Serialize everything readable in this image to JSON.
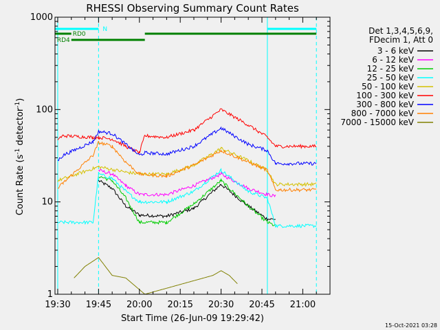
{
  "chart_data": {
    "type": "line",
    "title": "RHESSI Observing Summary Count Rates",
    "xlabel": "Start Time (26-Jun-09 19:29:42)",
    "ylabel": "Count Rate (s-1 detector-1)",
    "ylabel_parts": {
      "a": "Count Rate (s",
      "b": "-1",
      "c": " detector",
      "d": "-1",
      "e": ")"
    },
    "y_scale": "log",
    "ylim": [
      1,
      1000
    ],
    "xlim": [
      "19:29",
      "21:10"
    ],
    "x_ticks": [
      "19:30",
      "19:45",
      "20:00",
      "20:15",
      "20:30",
      "20:45",
      "21:00"
    ],
    "y_ticks": [
      "1",
      "10",
      "100",
      "1000"
    ],
    "legend_header": [
      "Det 1,3,4,5,6,9,",
      "FDecim 1, Att 0"
    ],
    "legend_position": "top-right, outside plot",
    "series": [
      {
        "name": "3 - 6 keV",
        "color": "#000000",
        "points": [
          [
            "19:45",
            17
          ],
          [
            "19:50",
            14
          ],
          [
            "19:55",
            9
          ],
          [
            "20:00",
            7.2
          ],
          [
            "20:10",
            7
          ],
          [
            "20:20",
            8.5
          ],
          [
            "20:30",
            15.5
          ],
          [
            "20:40",
            9
          ],
          [
            "20:47",
            6.5
          ],
          [
            "20:50",
            6.5
          ]
        ]
      },
      {
        "name": "6 - 12 keV",
        "color": "#ff00ff",
        "points": [
          [
            "19:45",
            22
          ],
          [
            "19:50",
            20
          ],
          [
            "19:55",
            15
          ],
          [
            "20:00",
            12
          ],
          [
            "20:10",
            12
          ],
          [
            "20:20",
            15
          ],
          [
            "20:30",
            20
          ],
          [
            "20:40",
            14
          ],
          [
            "20:47",
            12
          ],
          [
            "20:50",
            11.5
          ]
        ]
      },
      {
        "name": "12 - 25 keV",
        "color": "#00cc00",
        "points": [
          [
            "19:45",
            19
          ],
          [
            "19:50",
            17
          ],
          [
            "19:55",
            11
          ],
          [
            "20:00",
            6
          ],
          [
            "20:10",
            6
          ],
          [
            "20:20",
            9.5
          ],
          [
            "20:30",
            17
          ],
          [
            "20:40",
            9
          ],
          [
            "20:47",
            6
          ],
          [
            "20:50",
            5.5
          ]
        ]
      },
      {
        "name": "25 - 50 keV",
        "color": "#00ffff",
        "points": [
          [
            "19:30",
            6
          ],
          [
            "19:43",
            6
          ],
          [
            "19:45",
            20
          ],
          [
            "19:50",
            18
          ],
          [
            "19:55",
            13
          ],
          [
            "20:00",
            10
          ],
          [
            "20:10",
            10
          ],
          [
            "20:20",
            13
          ],
          [
            "20:30",
            22
          ],
          [
            "20:40",
            13
          ],
          [
            "20:47",
            11
          ],
          [
            "20:50",
            5.5
          ],
          [
            "21:05",
            5.5
          ]
        ]
      },
      {
        "name": "50 - 100 keV",
        "color": "#d4c000",
        "points": [
          [
            "19:30",
            17
          ],
          [
            "19:45",
            24
          ],
          [
            "19:55",
            21
          ],
          [
            "20:00",
            20
          ],
          [
            "20:10",
            20
          ],
          [
            "20:20",
            25
          ],
          [
            "20:30",
            38
          ],
          [
            "20:40",
            28
          ],
          [
            "20:47",
            22
          ],
          [
            "20:50",
            15.5
          ],
          [
            "21:05",
            15.5
          ]
        ]
      },
      {
        "name": "100 - 300 keV",
        "color": "#ff0000",
        "points": [
          [
            "19:30",
            48
          ],
          [
            "19:32",
            52
          ],
          [
            "19:43",
            50
          ],
          [
            "19:45",
            50
          ],
          [
            "19:50",
            48
          ],
          [
            "19:55",
            40
          ],
          [
            "20:00",
            34
          ],
          [
            "20:02",
            52
          ],
          [
            "20:10",
            50
          ],
          [
            "20:20",
            60
          ],
          [
            "20:30",
            100
          ],
          [
            "20:40",
            68
          ],
          [
            "20:47",
            50
          ],
          [
            "20:50",
            40
          ],
          [
            "21:05",
            40
          ]
        ]
      },
      {
        "name": "300 - 800 keV",
        "color": "#0000ff",
        "points": [
          [
            "19:30",
            28
          ],
          [
            "19:32",
            32
          ],
          [
            "19:43",
            45
          ],
          [
            "19:45",
            58
          ],
          [
            "19:50",
            55
          ],
          [
            "19:55",
            42
          ],
          [
            "20:00",
            32
          ],
          [
            "20:02",
            34
          ],
          [
            "20:10",
            33
          ],
          [
            "20:20",
            40
          ],
          [
            "20:30",
            63
          ],
          [
            "20:40",
            42
          ],
          [
            "20:47",
            36
          ],
          [
            "20:50",
            26
          ],
          [
            "21:05",
            26
          ]
        ]
      },
      {
        "name": "800 - 7000 keV",
        "color": "#ff8000",
        "points": [
          [
            "19:30",
            14
          ],
          [
            "19:32",
            16
          ],
          [
            "19:43",
            32
          ],
          [
            "19:45",
            44
          ],
          [
            "19:50",
            40
          ],
          [
            "19:55",
            27
          ],
          [
            "20:00",
            20
          ],
          [
            "20:10",
            19
          ],
          [
            "20:20",
            25
          ],
          [
            "20:30",
            36
          ],
          [
            "20:40",
            27
          ],
          [
            "20:47",
            22
          ],
          [
            "20:50",
            13.5
          ],
          [
            "21:05",
            13.5
          ]
        ]
      },
      {
        "name": "7000 - 15000 keV",
        "color": "#808000",
        "points": [
          [
            "19:36",
            1.5
          ],
          [
            "19:40",
            2
          ],
          [
            "19:45",
            2.5
          ],
          [
            "19:50",
            1.6
          ],
          [
            "19:55",
            1.5
          ],
          [
            "20:02",
            1
          ],
          [
            "20:27",
            1.6
          ],
          [
            "20:30",
            1.8
          ],
          [
            "20:33",
            1.6
          ],
          [
            "20:36",
            1.3
          ]
        ]
      }
    ],
    "status_bars": [
      {
        "label": "N",
        "color": "#00ffff",
        "segments": [
          [
            "19:29",
            "19:45"
          ],
          [
            "20:47",
            "21:05"
          ]
        ]
      },
      {
        "label": "RD0",
        "color": "#008000",
        "segments": [
          [
            "19:29",
            "19:35"
          ],
          [
            "20:02",
            "21:05"
          ]
        ]
      },
      {
        "label": "RD4",
        "color": "#008000",
        "segments": [
          [
            "19:35",
            "20:02"
          ]
        ]
      }
    ],
    "markers": [
      {
        "time": "19:30",
        "style": "solid",
        "color": "#00ffff"
      },
      {
        "time": "19:45",
        "style": "dashed",
        "color": "#00ffff"
      },
      {
        "time": "20:47",
        "style": "solid",
        "color": "#00ffff"
      },
      {
        "time": "21:05",
        "style": "dashed",
        "color": "#00ffff"
      }
    ],
    "grid": false
  },
  "footer_timestamp": "15-Oct-2021 03:28"
}
